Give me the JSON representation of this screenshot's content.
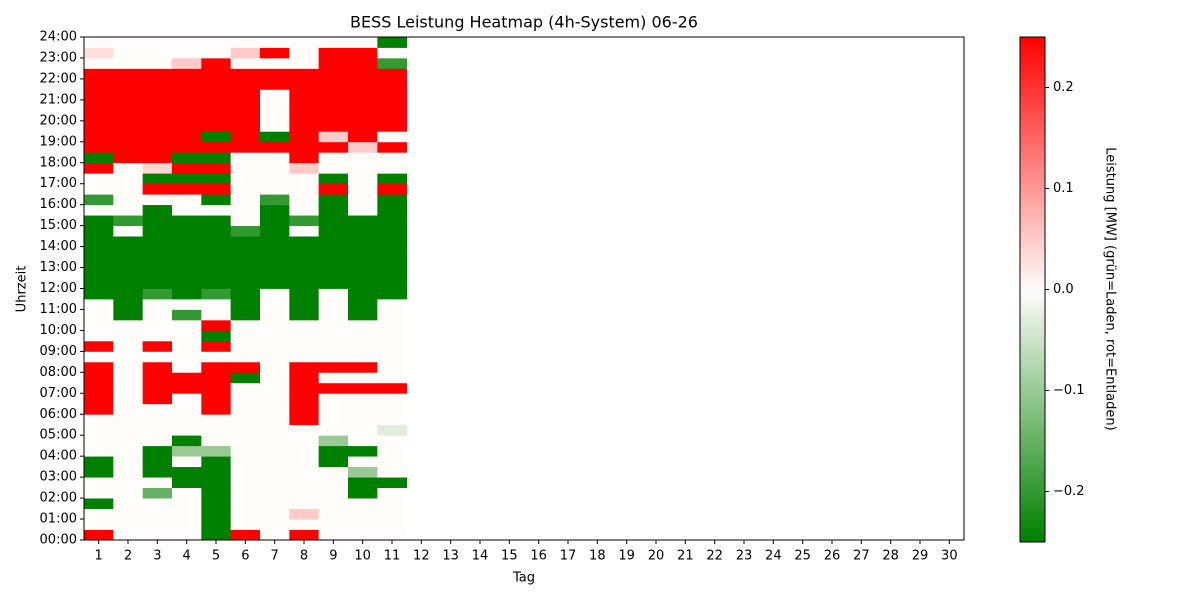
{
  "chart_data": {
    "type": "heatmap",
    "title": "BESS Leistung Heatmap (4h-System) 06-26",
    "xlabel": "Tag",
    "ylabel": "Uhrzeit",
    "colorbar_label": "Leistung [MW] (grün=Laden, rot=Entladen)",
    "categories": [
      1,
      2,
      3,
      4,
      5,
      6,
      7,
      8,
      9,
      10,
      11,
      12,
      13,
      14,
      15,
      16,
      17,
      18,
      19,
      20,
      21,
      22,
      23,
      24,
      25,
      26,
      27,
      28,
      29,
      30
    ],
    "ybins": [
      0,
      0.5,
      1,
      1.5,
      2,
      2.5,
      3,
      3.5,
      4,
      4.5,
      5,
      5.5,
      6,
      6.5,
      7,
      7.5,
      8,
      8.5,
      9,
      9.5,
      10,
      10.5,
      11,
      11.5,
      12,
      12.5,
      13,
      13.5,
      14,
      14.5,
      15,
      15.5,
      16,
      16.5,
      17,
      17.5,
      18,
      18.5,
      19,
      19.5,
      20,
      20.5,
      21,
      21.5,
      22,
      22.5,
      23,
      23.5,
      24
    ],
    "ylim": [
      0,
      24
    ],
    "yticks": [
      {
        "value": 0,
        "label": "00:00"
      },
      {
        "value": 1,
        "label": "01:00"
      },
      {
        "value": 2,
        "label": "02:00"
      },
      {
        "value": 3,
        "label": "03:00"
      },
      {
        "value": 4,
        "label": "04:00"
      },
      {
        "value": 5,
        "label": "05:00"
      },
      {
        "value": 6,
        "label": "06:00"
      },
      {
        "value": 7,
        "label": "07:00"
      },
      {
        "value": 8,
        "label": "08:00"
      },
      {
        "value": 9,
        "label": "09:00"
      },
      {
        "value": 10,
        "label": "10:00"
      },
      {
        "value": 11,
        "label": "11:00"
      },
      {
        "value": 12,
        "label": "12:00"
      },
      {
        "value": 13,
        "label": "13:00"
      },
      {
        "value": 14,
        "label": "14:00"
      },
      {
        "value": 15,
        "label": "15:00"
      },
      {
        "value": 16,
        "label": "16:00"
      },
      {
        "value": 17,
        "label": "17:00"
      },
      {
        "value": 18,
        "label": "18:00"
      },
      {
        "value": 19,
        "label": "19:00"
      },
      {
        "value": 20,
        "label": "20:00"
      },
      {
        "value": 21,
        "label": "21:00"
      },
      {
        "value": 22,
        "label": "22:00"
      },
      {
        "value": 23,
        "label": "23:00"
      },
      {
        "value": 24,
        "label": "24:00"
      }
    ],
    "zlim": [
      -0.25,
      0.25
    ],
    "zticks": [
      {
        "value": -0.2,
        "label": "−0.2"
      },
      {
        "value": -0.1,
        "label": "−0.1"
      },
      {
        "value": 0,
        "label": "0.0"
      },
      {
        "value": 0.1,
        "label": "0.1"
      },
      {
        "value": 0.2,
        "label": "0.2"
      }
    ],
    "colormap": [
      "#008000",
      "#fffcfa",
      "#ff0000"
    ],
    "z": [
      [
        0.25,
        0,
        0,
        -0.25,
        0,
        0,
        -0.25,
        -0.25,
        0,
        0,
        0,
        0,
        0.25,
        0.25,
        0.25,
        0.25,
        0.25,
        0,
        0.25,
        0,
        0,
        0,
        0,
        -0.25,
        -0.25,
        -0.25,
        -0.25,
        -0.25,
        -0.25,
        -0.25,
        -0.25,
        0,
        -0.2,
        0,
        0,
        0.25,
        -0.25,
        0.25,
        0.25,
        0.25,
        0.25,
        0.25,
        0.25,
        0.25,
        0.25,
        0,
        0.03,
        0
      ],
      [
        0,
        0,
        0,
        0,
        0,
        0,
        0,
        0,
        0,
        0,
        0,
        0,
        0,
        0,
        0,
        0,
        0,
        0,
        0,
        0,
        0,
        -0.25,
        -0.25,
        -0.25,
        -0.25,
        -0.25,
        -0.25,
        -0.25,
        -0.25,
        0,
        -0.2,
        0,
        0,
        0,
        0,
        0,
        0.25,
        0.25,
        0.25,
        0.25,
        0.25,
        0.25,
        0.25,
        0.25,
        0.25,
        0,
        0,
        0
      ],
      [
        0,
        0,
        0,
        0,
        -0.15,
        0,
        -0.25,
        -0.25,
        -0.25,
        0,
        0,
        0,
        0,
        0.25,
        0.25,
        0.25,
        0.25,
        0,
        0.25,
        0,
        0,
        0,
        0,
        -0.2,
        -0.25,
        -0.25,
        -0.25,
        -0.25,
        -0.25,
        -0.25,
        -0.25,
        -0.25,
        0,
        0.25,
        -0.25,
        0.04,
        0.25,
        0.25,
        0.25,
        0.25,
        0.25,
        0.25,
        0.25,
        0.25,
        0.25,
        0,
        0,
        0
      ],
      [
        0,
        0,
        0,
        0,
        0,
        -0.25,
        -0.25,
        0,
        -0.1,
        -0.25,
        0,
        0,
        0,
        0,
        0.25,
        0.25,
        0,
        0,
        0,
        0,
        0,
        -0.2,
        0,
        -0.25,
        -0.25,
        -0.25,
        -0.25,
        -0.25,
        -0.25,
        -0.25,
        -0.25,
        0,
        0,
        0.25,
        -0.25,
        0.25,
        -0.25,
        0.25,
        0.25,
        0.25,
        0.25,
        0.25,
        0.25,
        0.25,
        0.25,
        0.05,
        0,
        0
      ],
      [
        -0.25,
        -0.25,
        -0.25,
        -0.25,
        -0.25,
        -0.25,
        -0.25,
        -0.25,
        -0.1,
        0,
        0,
        0,
        0.25,
        0.25,
        0.25,
        0.25,
        0.25,
        0,
        0.25,
        -0.25,
        0.25,
        0,
        0,
        -0.2,
        -0.25,
        -0.25,
        -0.25,
        -0.25,
        -0.25,
        -0.25,
        -0.25,
        0,
        -0.25,
        0.25,
        -0.25,
        0.25,
        -0.25,
        0.25,
        -0.25,
        0.25,
        0.25,
        0.25,
        0.25,
        0.25,
        0.25,
        0.25,
        0,
        0
      ],
      [
        0.25,
        0,
        0,
        0,
        0,
        0,
        0,
        0,
        0,
        0,
        0,
        0,
        0,
        0,
        0,
        -0.25,
        0.25,
        0,
        0,
        0,
        0,
        -0.25,
        -0.25,
        -0.25,
        -0.25,
        -0.25,
        -0.25,
        -0.25,
        -0.25,
        -0.2,
        0,
        0,
        0,
        0,
        0,
        0,
        0,
        0.25,
        0.25,
        0.25,
        0.25,
        0.25,
        0.25,
        0.25,
        0.25,
        0,
        0.05,
        0
      ],
      [
        0,
        0,
        0,
        0,
        0,
        0,
        0,
        0,
        0,
        0,
        0,
        0,
        0,
        0,
        0,
        0,
        0,
        0,
        0,
        0,
        0,
        0,
        0,
        0,
        -0.25,
        -0.25,
        -0.25,
        -0.25,
        -0.25,
        -0.25,
        -0.25,
        -0.25,
        -0.2,
        0,
        0,
        0,
        0,
        0.25,
        -0.25,
        0,
        0,
        0,
        0,
        0.25,
        0.25,
        0,
        0.25,
        0
      ],
      [
        0.25,
        0,
        0.05,
        0,
        0,
        0,
        0,
        0,
        0,
        0,
        0,
        0.25,
        0.25,
        0.25,
        0.25,
        0.25,
        0.25,
        0,
        0,
        0,
        0,
        -0.25,
        -0.25,
        -0.25,
        -0.25,
        -0.25,
        -0.25,
        -0.25,
        -0.25,
        0,
        -0.2,
        0,
        0,
        0,
        0,
        0.05,
        0.25,
        0.25,
        0.25,
        0.25,
        0.25,
        0.25,
        0.25,
        0.25,
        0.25,
        0,
        0,
        0
      ],
      [
        0,
        0,
        0,
        0,
        0,
        0,
        0,
        -0.25,
        -0.25,
        -0.1,
        0,
        0,
        0,
        0,
        0.25,
        0,
        0.25,
        0,
        0,
        0,
        0,
        0,
        0,
        0,
        -0.25,
        -0.25,
        -0.25,
        -0.25,
        -0.25,
        -0.25,
        -0.25,
        -0.25,
        -0.25,
        0.25,
        -0.25,
        0,
        0,
        0.25,
        0.05,
        0.25,
        0.25,
        0.25,
        0.25,
        0.25,
        0.25,
        0.25,
        0.25,
        0
      ],
      [
        0,
        0,
        0,
        0,
        -0.25,
        -0.25,
        -0.1,
        0,
        -0.25,
        0,
        0,
        0,
        0,
        0,
        0.25,
        0,
        0.25,
        0,
        0,
        0,
        0,
        -0.25,
        -0.25,
        -0.25,
        -0.25,
        -0.25,
        -0.25,
        -0.25,
        -0.25,
        -0.25,
        -0.25,
        0,
        0,
        0,
        0,
        0,
        0,
        0.05,
        0.25,
        0.25,
        0.25,
        0.25,
        0.25,
        0.25,
        0.25,
        0.25,
        0.25,
        0
      ],
      [
        0,
        0,
        0,
        0,
        0,
        -0.25,
        0,
        0,
        0,
        0,
        -0.03,
        0,
        0,
        0,
        0.25,
        0,
        0,
        0,
        0,
        0,
        0,
        0,
        0,
        -0.25,
        -0.25,
        -0.25,
        -0.25,
        -0.25,
        -0.25,
        -0.25,
        -0.25,
        -0.25,
        -0.25,
        0.25,
        -0.25,
        0,
        0,
        0.25,
        0,
        0.25,
        0.25,
        0.25,
        0.25,
        0.25,
        0.25,
        -0.2,
        0,
        -0.25
      ],
      null,
      null,
      null,
      null,
      null,
      null,
      null,
      null,
      null,
      null,
      null,
      null,
      null,
      null,
      null,
      null,
      null,
      null,
      null
    ]
  }
}
